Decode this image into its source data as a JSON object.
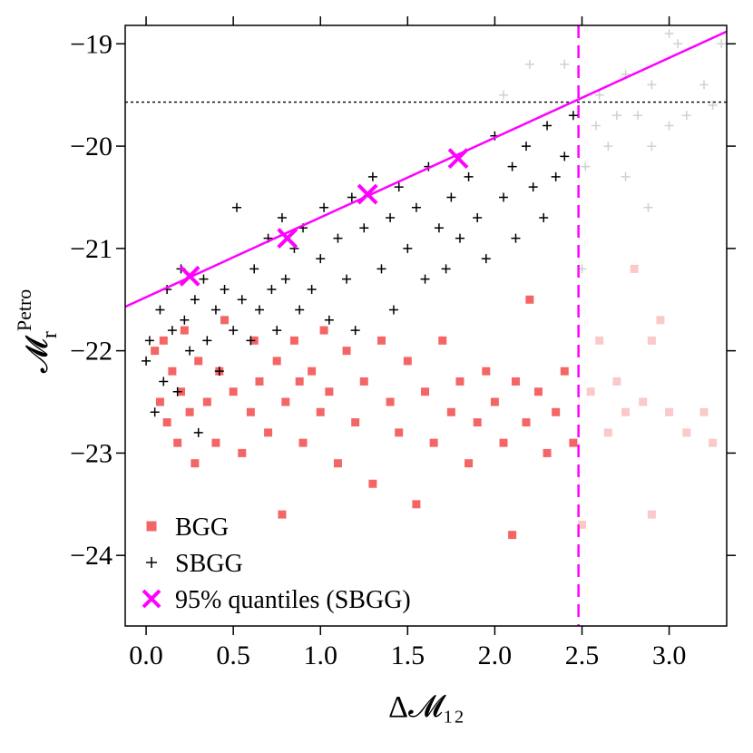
{
  "chart_data": {
    "type": "scatter",
    "x_label": "Δ𝓜₁₂",
    "y_label": {
      "main": "𝓜",
      "sub": "r",
      "sup": "Petro"
    },
    "xlim": [
      -0.12,
      3.33
    ],
    "ylim": [
      -24.69,
      -18.82
    ],
    "xticks": [
      {
        "value": 0,
        "label": "0.0"
      },
      0.5,
      {
        "value": 1,
        "label": "1.0"
      },
      1.5,
      {
        "value": 2,
        "label": "2.0"
      },
      2.5,
      {
        "value": 3,
        "label": "3.0"
      }
    ],
    "yticks": [
      {
        "value": -24,
        "label": "−24"
      },
      {
        "value": -23,
        "label": "−23"
      },
      {
        "value": -22,
        "label": "−22"
      },
      {
        "value": -21,
        "label": "−21"
      },
      {
        "value": -20,
        "label": "−20"
      },
      {
        "value": -19,
        "label": "−19"
      }
    ],
    "legend": "bottom-left",
    "fit_line": {
      "x": [
        -0.12,
        3.33
      ],
      "values": [
        -21.57,
        -18.88
      ],
      "color": "#ff00ff"
    },
    "vline": {
      "x": 2.48,
      "color": "#ff00ff"
    },
    "hline": {
      "y": -19.57,
      "color": "#000000"
    },
    "series": [
      {
        "name": "BGG",
        "marker": "square",
        "color": "#f24b4b",
        "x": [
          0.05,
          0.08,
          0.1,
          0.12,
          0.15,
          0.18,
          0.2,
          0.22,
          0.25,
          0.28,
          0.3,
          0.35,
          0.4,
          0.42,
          0.45,
          0.5,
          0.55,
          0.6,
          0.62,
          0.65,
          0.7,
          0.75,
          0.78,
          0.8,
          0.85,
          0.88,
          0.9,
          0.95,
          1.0,
          1.02,
          1.05,
          1.1,
          1.15,
          1.2,
          1.25,
          1.3,
          1.35,
          1.4,
          1.45,
          1.5,
          1.55,
          1.6,
          1.65,
          1.7,
          1.75,
          1.8,
          1.85,
          1.9,
          1.95,
          2.0,
          2.05,
          2.1,
          2.12,
          2.18,
          2.2,
          2.25,
          2.3,
          2.35,
          2.4,
          2.45,
          2.5,
          2.55,
          2.6,
          2.65,
          2.7,
          2.75,
          2.8,
          2.85,
          2.9,
          2.95,
          3.0,
          3.1,
          3.2,
          3.25,
          2.9
        ],
        "values": [
          -22.0,
          -22.5,
          -21.9,
          -22.7,
          -22.2,
          -22.9,
          -22.4,
          -21.8,
          -22.6,
          -23.1,
          -22.1,
          -22.5,
          -22.9,
          -22.2,
          -21.7,
          -22.4,
          -23.0,
          -22.6,
          -21.9,
          -22.3,
          -22.8,
          -22.1,
          -23.6,
          -22.5,
          -21.9,
          -22.3,
          -22.9,
          -22.2,
          -22.6,
          -21.8,
          -22.4,
          -23.1,
          -22.0,
          -22.7,
          -22.3,
          -23.3,
          -21.9,
          -22.5,
          -22.8,
          -22.1,
          -23.5,
          -22.4,
          -22.9,
          -21.9,
          -22.6,
          -22.3,
          -23.1,
          -22.7,
          -22.2,
          -22.5,
          -22.9,
          -23.8,
          -22.3,
          -22.7,
          -21.5,
          -22.4,
          -23.0,
          -22.6,
          -22.2,
          -22.9,
          -23.7,
          -22.4,
          -21.9,
          -22.8,
          -22.3,
          -22.6,
          -21.2,
          -22.5,
          -23.6,
          -21.7,
          -22.6,
          -22.8,
          -22.6,
          -22.9,
          -21.9
        ]
      },
      {
        "name": "SBGG",
        "marker": "plus",
        "color": "#000000",
        "x": [
          0.0,
          0.02,
          0.05,
          0.08,
          0.1,
          0.12,
          0.15,
          0.18,
          0.2,
          0.22,
          0.25,
          0.28,
          0.3,
          0.33,
          0.35,
          0.4,
          0.42,
          0.45,
          0.5,
          0.52,
          0.55,
          0.6,
          0.62,
          0.65,
          0.7,
          0.72,
          0.75,
          0.78,
          0.8,
          0.85,
          0.88,
          0.9,
          0.95,
          1.0,
          1.02,
          1.05,
          1.1,
          1.15,
          1.18,
          1.2,
          1.25,
          1.3,
          1.35,
          1.4,
          1.42,
          1.45,
          1.5,
          1.55,
          1.6,
          1.62,
          1.68,
          1.72,
          1.75,
          1.8,
          1.85,
          1.9,
          1.95,
          2.0,
          2.05,
          2.1,
          2.12,
          2.18,
          2.22,
          2.28,
          2.3,
          2.35,
          2.4,
          2.45,
          2.5,
          2.52,
          2.58,
          2.65,
          2.7,
          2.75,
          2.82,
          2.88,
          2.9,
          3.0,
          3.1,
          3.25,
          2.05,
          2.2,
          2.4,
          2.6,
          2.75,
          2.9,
          3.05,
          3.2,
          3.3,
          3.0
        ],
        "values": [
          -22.1,
          -21.9,
          -22.6,
          -21.6,
          -22.3,
          -21.4,
          -21.8,
          -22.4,
          -21.2,
          -21.7,
          -22.0,
          -21.5,
          -22.8,
          -21.3,
          -21.9,
          -21.6,
          -22.2,
          -21.4,
          -21.8,
          -20.6,
          -21.5,
          -21.9,
          -21.2,
          -21.6,
          -20.9,
          -21.4,
          -21.8,
          -20.7,
          -21.3,
          -21.0,
          -21.6,
          -20.8,
          -21.4,
          -21.1,
          -20.6,
          -21.7,
          -20.9,
          -21.3,
          -20.5,
          -21.8,
          -20.8,
          -20.3,
          -21.2,
          -20.7,
          -21.6,
          -20.4,
          -21.0,
          -20.6,
          -21.3,
          -20.2,
          -20.8,
          -21.2,
          -20.5,
          -20.9,
          -20.3,
          -20.7,
          -21.1,
          -19.9,
          -20.5,
          -20.2,
          -20.9,
          -20.0,
          -20.4,
          -20.7,
          -19.8,
          -20.3,
          -20.1,
          -19.7,
          -21.2,
          -20.2,
          -19.8,
          -20.0,
          -19.7,
          -20.3,
          -19.7,
          -20.6,
          -20.0,
          -19.8,
          -19.7,
          -19.6,
          -19.5,
          -19.2,
          -19.2,
          -19.5,
          -19.3,
          -19.4,
          -19.0,
          -19.4,
          -19.0,
          -18.9
        ]
      },
      {
        "name": "95% quantiles (SBGG)",
        "marker": "x",
        "color": "#ff00ff",
        "x": [
          0.25,
          0.81,
          1.27,
          1.79
        ],
        "values": [
          -21.27,
          -20.9,
          -20.47,
          -20.12
        ]
      }
    ]
  }
}
